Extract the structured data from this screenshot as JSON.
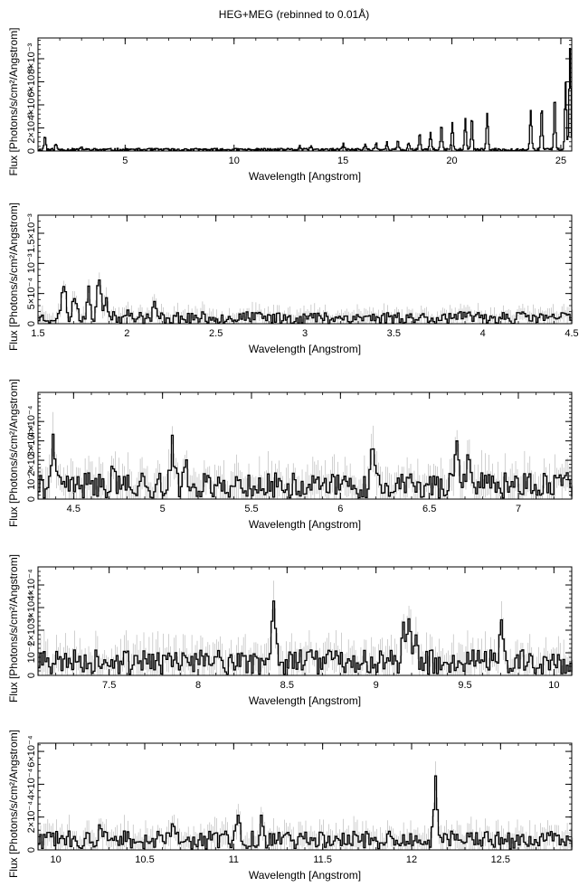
{
  "title": "HEG+MEG (rebinned to 0.01Å)",
  "chart_data": [
    {
      "type": "line",
      "xlabel": "Wavelength [Angstrom]",
      "ylabel": "Flux [Photons/s/cm²/Angstrom]",
      "xlim": [
        1.0,
        25.5
      ],
      "ylim": [
        0,
        0.0098
      ],
      "x_ticks": [
        5,
        10,
        15,
        20,
        25
      ],
      "x_tick_labels": [
        "5",
        "10",
        "15",
        "20",
        "25"
      ],
      "y_ticks": [
        0,
        0.002,
        0.004,
        0.006,
        0.008
      ],
      "y_tick_labels": [
        "0",
        "2×10⁻³",
        "4×10⁻³",
        "6×10⁻³",
        "8×10⁻³"
      ],
      "baseline": 0.00012,
      "noise": 0.0001,
      "error_bars": false,
      "step": 0.04,
      "seed": 11,
      "peaks": [
        [
          1.3,
          0.0012
        ],
        [
          1.8,
          0.0005
        ],
        [
          3.0,
          0.0002
        ],
        [
          13.0,
          0.0003
        ],
        [
          13.5,
          0.0003
        ],
        [
          15.0,
          0.0005
        ],
        [
          16.0,
          0.0005
        ],
        [
          16.5,
          0.0006
        ],
        [
          17.0,
          0.0006
        ],
        [
          17.5,
          0.0007
        ],
        [
          18.0,
          0.0006
        ],
        [
          18.5,
          0.0014
        ],
        [
          19.0,
          0.0016
        ],
        [
          19.5,
          0.0022
        ],
        [
          20.0,
          0.0024
        ],
        [
          20.6,
          0.0026
        ],
        [
          20.9,
          0.0029
        ],
        [
          21.6,
          0.0032
        ],
        [
          23.6,
          0.0035
        ],
        [
          24.1,
          0.0037
        ],
        [
          24.7,
          0.0046
        ],
        [
          25.2,
          0.0058
        ],
        [
          25.4,
          0.0088
        ]
      ]
    },
    {
      "type": "line",
      "xlabel": "Wavelength [Angstrom]",
      "ylabel": "Flux [Photons/s/cm²/Angstrom]",
      "xlim": [
        1.5,
        4.5
      ],
      "ylim": [
        0,
        0.0018
      ],
      "x_ticks": [
        1.5,
        2,
        2.5,
        3,
        3.5,
        4,
        4.5
      ],
      "x_tick_labels": [
        "1.5",
        "2",
        "2.5",
        "3",
        "3.5",
        "4",
        "4.5"
      ],
      "y_ticks": [
        0,
        0.0005,
        0.001,
        0.0015
      ],
      "y_tick_labels": [
        "0",
        "5×10⁻⁴",
        "10⁻³",
        "1.5×10⁻³"
      ],
      "baseline": 0.0001,
      "noise": 9e-05,
      "error_bars": true,
      "step": 0.01,
      "seed": 23,
      "peaks": [
        [
          1.64,
          0.0006
        ],
        [
          1.7,
          0.0004
        ],
        [
          1.78,
          0.0005
        ],
        [
          1.84,
          0.00072
        ],
        [
          1.88,
          0.0003
        ],
        [
          2.0,
          0.0002
        ],
        [
          2.15,
          0.0002
        ]
      ]
    },
    {
      "type": "line",
      "xlabel": "Wavelength [Angstrom]",
      "ylabel": "Flux [Photons/s/cm²/Angstrom]",
      "xlim": [
        4.3,
        7.3
      ],
      "ylim": [
        0,
        0.00055
      ],
      "x_ticks": [
        4.5,
        5,
        5.5,
        6,
        6.5,
        7
      ],
      "x_tick_labels": [
        "4.5",
        "5",
        "5.5",
        "6",
        "6.5",
        "7"
      ],
      "y_ticks": [
        0,
        0.0001,
        0.0002,
        0.0003,
        0.0004
      ],
      "y_tick_labels": [
        "0",
        "10⁻⁴",
        "2×10⁻⁴",
        "3×10⁻⁴",
        "4×10⁻⁴"
      ],
      "baseline": 7e-05,
      "noise": 6e-05,
      "error_bars": true,
      "step": 0.01,
      "seed": 41,
      "peaks": [
        [
          4.38,
          0.0002
        ],
        [
          4.72,
          0.00015
        ],
        [
          5.05,
          0.0002
        ],
        [
          5.12,
          0.00015
        ],
        [
          6.18,
          0.00025
        ],
        [
          6.65,
          0.0002
        ],
        [
          6.72,
          0.00018
        ]
      ]
    },
    {
      "type": "line",
      "xlabel": "Wavelength [Angstrom]",
      "ylabel": "Flux [Photons/s/cm²/Angstrom]",
      "xlim": [
        7.1,
        10.1
      ],
      "ylim": [
        0,
        0.00048
      ],
      "x_ticks": [
        7.5,
        8,
        8.5,
        9,
        9.5,
        10
      ],
      "x_tick_labels": [
        "7.5",
        "8",
        "8.5",
        "9",
        "9.5",
        "10"
      ],
      "y_ticks": [
        0,
        0.0001,
        0.0002,
        0.0003,
        0.0004
      ],
      "y_tick_labels": [
        "0",
        "10⁻⁴",
        "2×10⁻⁴",
        "3×10⁻⁴",
        "4×10⁻⁴"
      ],
      "baseline": 6e-05,
      "noise": 5e-05,
      "error_bars": true,
      "step": 0.01,
      "seed": 57,
      "peaks": [
        [
          8.42,
          0.00022
        ],
        [
          9.15,
          0.00015
        ],
        [
          9.18,
          0.00024
        ],
        [
          9.22,
          0.00012
        ],
        [
          9.7,
          0.00014
        ]
      ]
    },
    {
      "type": "line",
      "xlabel": "Wavelength [Angstrom]",
      "ylabel": "Flux [Photons/s/cm²/Angstrom]",
      "xlim": [
        9.9,
        12.9
      ],
      "ylim": [
        0,
        0.00065
      ],
      "x_ticks": [
        10,
        10.5,
        11,
        11.5,
        12,
        12.5
      ],
      "x_tick_labels": [
        "10",
        "10.5",
        "11",
        "11.5",
        "12",
        "12.5"
      ],
      "y_ticks": [
        0,
        0.0002,
        0.0004,
        0.0006
      ],
      "y_tick_labels": [
        "0",
        "2×10⁻⁴",
        "4×10⁻⁴",
        "6×10⁻⁴"
      ],
      "baseline": 6e-05,
      "noise": 5e-05,
      "error_bars": true,
      "step": 0.01,
      "seed": 73,
      "peaks": [
        [
          10.25,
          0.00012
        ],
        [
          10.65,
          8e-05
        ],
        [
          11.02,
          0.0001
        ],
        [
          11.15,
          0.0001
        ],
        [
          12.13,
          0.00036
        ]
      ]
    }
  ]
}
